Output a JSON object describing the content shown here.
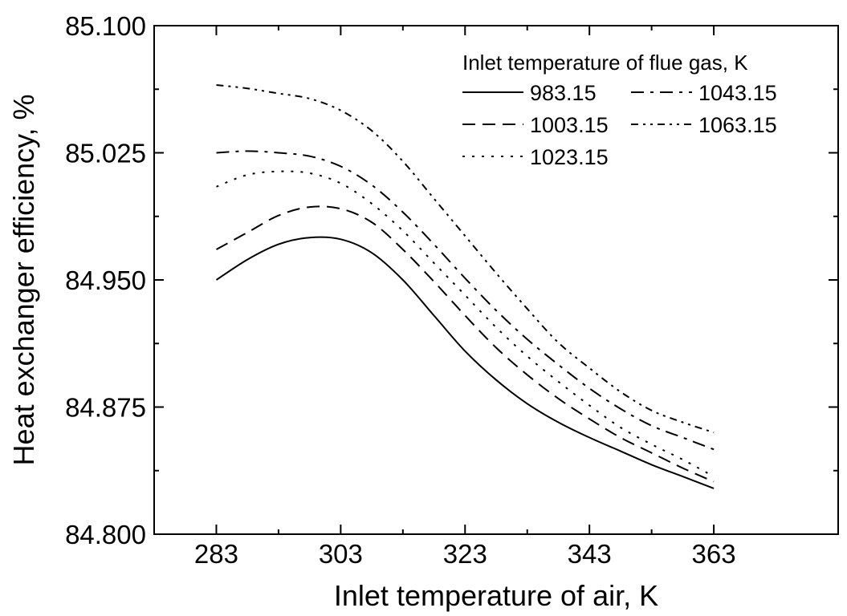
{
  "chart_data": {
    "type": "line",
    "title": "",
    "xlabel": "Inlet temperature of air, K",
    "ylabel": "Heat exchanger efficiency, %",
    "xlim": [
      273,
      383
    ],
    "ylim": [
      84.8,
      85.1
    ],
    "xticks": [
      "283",
      "303",
      "323",
      "343",
      "363"
    ],
    "yticks": [
      "84.800",
      "84.875",
      "84.950",
      "85.025",
      "85.100"
    ],
    "grid": false,
    "legend": {
      "title": "Inlet temperature of flue gas, K",
      "position": "top-right"
    },
    "x": [
      283,
      288,
      293,
      298,
      303,
      308,
      313,
      318,
      323,
      328,
      333,
      338,
      343,
      348,
      353,
      358,
      363
    ],
    "series": [
      {
        "name": "983.15",
        "dash": "solid",
        "values": [
          84.95,
          84.962,
          84.971,
          84.975,
          84.974,
          84.966,
          84.95,
          84.929,
          84.908,
          84.891,
          84.877,
          84.866,
          84.857,
          84.849,
          84.841,
          84.834,
          84.827
        ]
      },
      {
        "name": "1003.15",
        "dash": "dash",
        "values": [
          84.968,
          84.978,
          84.988,
          84.993,
          84.992,
          84.984,
          84.968,
          84.949,
          84.929,
          84.91,
          84.894,
          84.88,
          84.868,
          84.857,
          84.848,
          84.839,
          84.831
        ]
      },
      {
        "name": "1023.15",
        "dash": "dot",
        "values": [
          85.005,
          85.012,
          85.014,
          85.013,
          85.007,
          84.995,
          84.979,
          84.96,
          84.941,
          84.922,
          84.905,
          84.89,
          84.876,
          84.863,
          84.853,
          84.844,
          84.834
        ]
      },
      {
        "name": "1043.15",
        "dash": "dashdot",
        "values": [
          85.025,
          85.026,
          85.025,
          85.023,
          85.017,
          85.006,
          84.99,
          84.971,
          84.951,
          84.932,
          84.915,
          84.9,
          84.886,
          84.874,
          84.864,
          84.857,
          84.85
        ]
      },
      {
        "name": "1063.15",
        "dash": "dashdotdot",
        "values": [
          85.065,
          85.063,
          85.06,
          85.057,
          85.05,
          85.038,
          85.02,
          84.998,
          84.976,
          84.954,
          84.933,
          84.913,
          84.898,
          84.884,
          84.873,
          84.866,
          84.86
        ]
      }
    ]
  }
}
